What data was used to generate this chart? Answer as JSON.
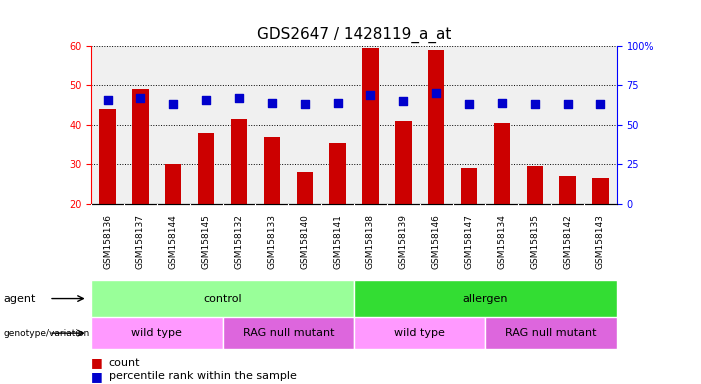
{
  "title": "GDS2647 / 1428119_a_at",
  "samples": [
    "GSM158136",
    "GSM158137",
    "GSM158144",
    "GSM158145",
    "GSM158132",
    "GSM158133",
    "GSM158140",
    "GSM158141",
    "GSM158138",
    "GSM158139",
    "GSM158146",
    "GSM158147",
    "GSM158134",
    "GSM158135",
    "GSM158142",
    "GSM158143"
  ],
  "counts": [
    44,
    49,
    30,
    38,
    41.5,
    37,
    28,
    35.5,
    59.5,
    41,
    59,
    29,
    40.5,
    29.5,
    27,
    26.5
  ],
  "percentile_pct": [
    66,
    67,
    63,
    66,
    67,
    64,
    63,
    64,
    69,
    65,
    70,
    63,
    64,
    63,
    63,
    63
  ],
  "ymin": 20,
  "ymax": 60,
  "yticks_left": [
    20,
    30,
    40,
    50,
    60
  ],
  "yticks_right": [
    0,
    25,
    50,
    75,
    100
  ],
  "bar_color": "#cc0000",
  "dot_color": "#0000cc",
  "agent_row": {
    "groups": [
      {
        "name": "control",
        "span": [
          0,
          8
        ],
        "color": "#99ff99"
      },
      {
        "name": "allergen",
        "span": [
          8,
          16
        ],
        "color": "#33dd33"
      }
    ]
  },
  "genotype_row": {
    "groups": [
      {
        "name": "wild type",
        "span": [
          0,
          4
        ],
        "color": "#ff99ff"
      },
      {
        "name": "RAG null mutant",
        "span": [
          4,
          8
        ],
        "color": "#dd66dd"
      },
      {
        "name": "wild type",
        "span": [
          8,
          12
        ],
        "color": "#ff99ff"
      },
      {
        "name": "RAG null mutant",
        "span": [
          12,
          16
        ],
        "color": "#dd66dd"
      }
    ]
  },
  "bar_width": 0.5,
  "dot_size": 30,
  "tick_fontsize": 7,
  "sample_fontsize": 6.5,
  "annotation_fontsize": 8,
  "legend_fontsize": 8
}
